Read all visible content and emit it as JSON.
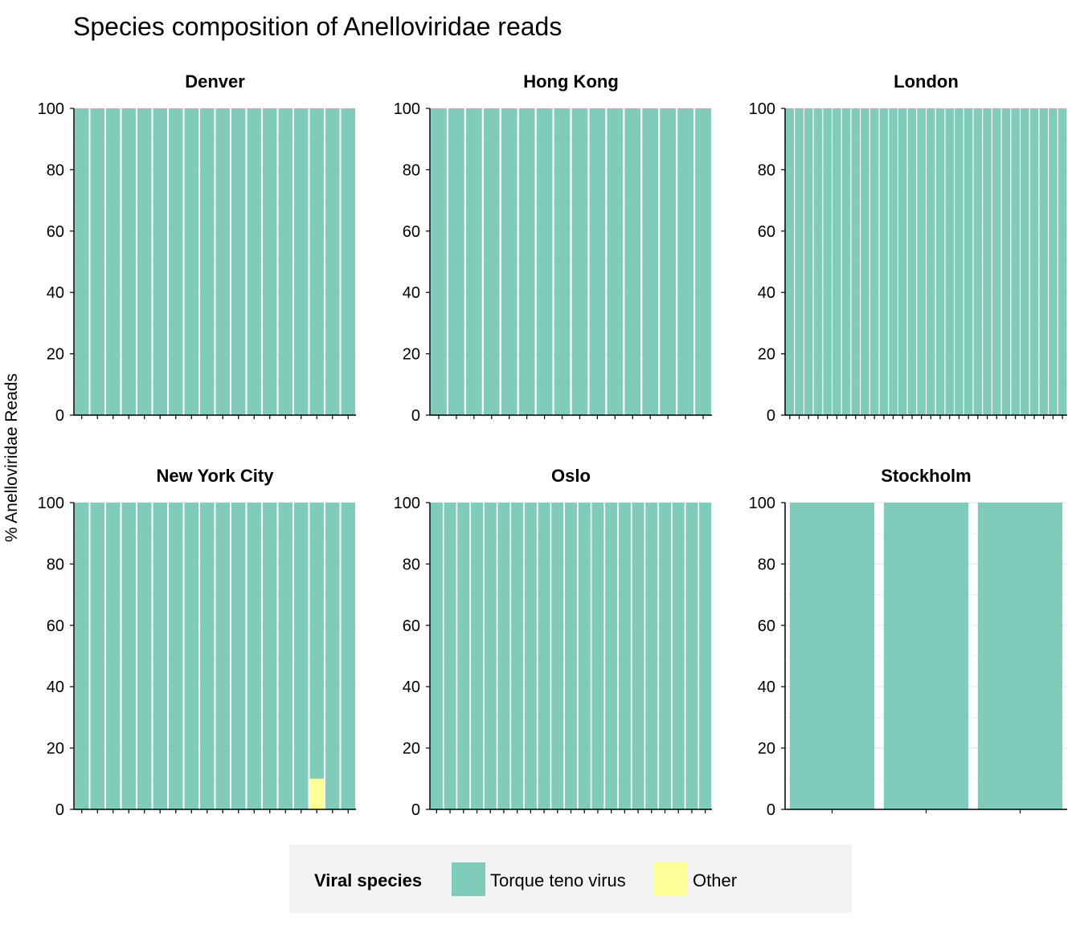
{
  "chart_data": {
    "type": "bar",
    "stacked": true,
    "title": "Species composition of Anelloviridae reads",
    "ylabel": "% Anelloviridae Reads",
    "xlabel": "",
    "ylim": [
      0,
      100
    ],
    "yticks": [
      "0",
      "20",
      "40",
      "60",
      "80",
      "100"
    ],
    "grid": true,
    "legend": {
      "title": "Viral species",
      "placement": "bottom",
      "entries": [
        {
          "name": "Torque teno virus",
          "color": "#80cbb9"
        },
        {
          "name": "Other",
          "color": "#ffff99"
        }
      ]
    },
    "facets": [
      {
        "name": "Denver",
        "samples": 18,
        "other": {}
      },
      {
        "name": "Hong Kong",
        "samples": 16,
        "other": {}
      },
      {
        "name": "London",
        "samples": 30,
        "other": {}
      },
      {
        "name": "New York City",
        "samples": 18,
        "other": {
          "15": 10
        }
      },
      {
        "name": "Oslo",
        "samples": 21,
        "other": {}
      },
      {
        "name": "Stockholm",
        "samples": 3,
        "other": {}
      }
    ]
  },
  "colors": {
    "ttv": "#80cbb9",
    "other": "#ffff99",
    "axis": "#000000",
    "grid": "#ebebeb",
    "legend_bg": "#f3f3f3"
  }
}
